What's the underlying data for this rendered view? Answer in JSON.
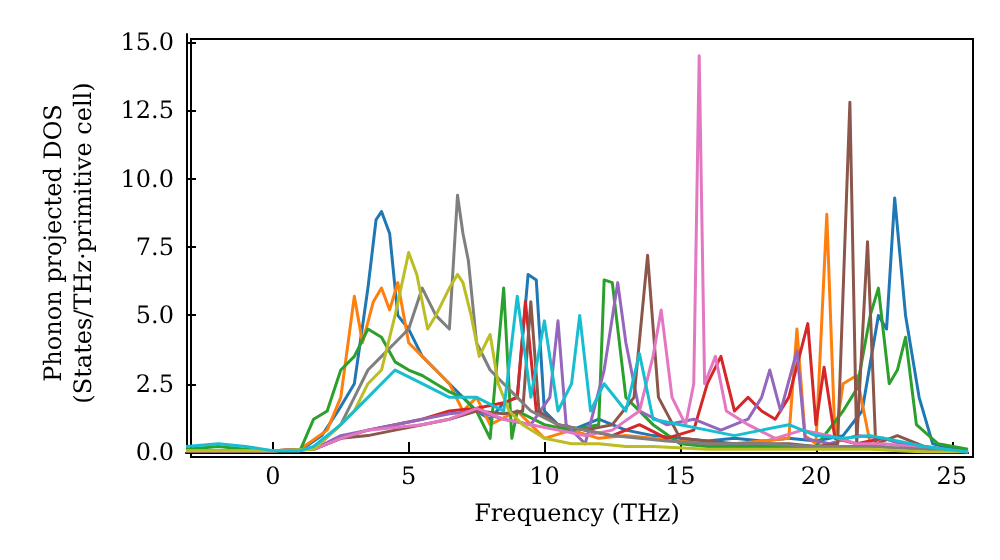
{
  "chart_data": {
    "type": "line",
    "xlabel": "Frequency (THz)",
    "ylabel": "Phonon projected DOS\n(States/THz·primitive cell)",
    "xlim": [
      -3.2,
      25.6
    ],
    "ylim": [
      0,
      15.3
    ],
    "xticks": [
      0,
      5,
      10,
      15,
      20,
      25
    ],
    "yticks": [
      {
        "value": 0,
        "label": "0.0"
      },
      2.5,
      {
        "value": 5,
        "label": "5.0"
      },
      7.5,
      {
        "value": 10,
        "label": "10.0"
      },
      12.5,
      {
        "value": 15,
        "label": "15.0"
      }
    ],
    "grid": false,
    "marker": "none",
    "line_style": "solid",
    "series": [
      {
        "color": "#1f77b4",
        "x": [
          0,
          1,
          1.8,
          2.4,
          3,
          3.5,
          3.8,
          4,
          4.3,
          4.6,
          5,
          5.5,
          6,
          6.5,
          7,
          7.5,
          8,
          8.5,
          9,
          9.4,
          9.7,
          10,
          10.5,
          11,
          12,
          13,
          14,
          15,
          16,
          17,
          18,
          19,
          20,
          21,
          21.7,
          22.3,
          22.6,
          22.9,
          23.3,
          23.8,
          24.3,
          25.6
        ],
        "values": [
          0.05,
          0.05,
          0.6,
          1.5,
          2.5,
          6,
          8.5,
          8.8,
          8,
          5,
          4.5,
          3.5,
          3,
          2.5,
          2,
          1.5,
          1.2,
          1.8,
          2,
          6.5,
          6.3,
          1.5,
          1,
          0.8,
          1.2,
          0.8,
          0.6,
          0.5,
          0.4,
          0.5,
          0.4,
          0.5,
          0.4,
          0.6,
          1.5,
          5,
          4.5,
          9.3,
          5,
          2,
          0.3,
          0
        ]
      },
      {
        "color": "#ff7f0e",
        "x": [
          0,
          1,
          2,
          2.5,
          3,
          3.3,
          3.7,
          4,
          4.3,
          4.6,
          5,
          5.5,
          6,
          6.5,
          7,
          7.5,
          8,
          9,
          10,
          11,
          12,
          13,
          14,
          15,
          16,
          17,
          18,
          19,
          19.3,
          19.6,
          20,
          20.4,
          20.7,
          21,
          21.5,
          22,
          23
        ],
        "values": [
          0.05,
          0.1,
          0.8,
          2,
          5.7,
          4,
          5.5,
          6,
          5.2,
          6.2,
          4,
          3.5,
          3,
          2.5,
          1.5,
          2,
          1,
          1.5,
          0.5,
          0.8,
          0.5,
          0.6,
          0.5,
          0.4,
          0.3,
          0.3,
          0.4,
          0.5,
          4.5,
          0.6,
          0.3,
          8.7,
          0.5,
          2.5,
          2.8,
          0.3,
          0.1
        ]
      },
      {
        "color": "#2ca02c",
        "x": [
          -3.2,
          -2,
          -1,
          0,
          1,
          1.5,
          2,
          2.5,
          3,
          3.5,
          4,
          4.5,
          5,
          5.5,
          6,
          6.5,
          7,
          7.5,
          8,
          8.5,
          8.8,
          9,
          10,
          11,
          12,
          12.2,
          12.5,
          13,
          14,
          15,
          16,
          17,
          18,
          19,
          20,
          21,
          21.5,
          22,
          22.3,
          22.7,
          23,
          23.3,
          23.7,
          24.5,
          25.6
        ],
        "values": [
          0.1,
          0.2,
          0.1,
          0.05,
          0.05,
          1.2,
          1.5,
          3,
          3.5,
          4.5,
          4.2,
          3.3,
          3,
          2.8,
          2.5,
          2.2,
          2,
          1.5,
          0.5,
          6,
          0.5,
          1.5,
          1,
          0.8,
          1,
          6.3,
          6.2,
          2,
          1,
          0.3,
          0.2,
          0.2,
          0.2,
          0.2,
          0.2,
          1.5,
          2.3,
          5,
          6,
          2.5,
          3,
          4.2,
          1,
          0.3,
          0.1
        ]
      },
      {
        "color": "#d62728",
        "x": [
          -3.2,
          0,
          1.5,
          2.5,
          3.5,
          4.5,
          5.5,
          6.5,
          7.5,
          8.5,
          9,
          9.3,
          9.7,
          10.5,
          11.5,
          12.5,
          13.5,
          14.5,
          15.5,
          16,
          16.5,
          17,
          17.5,
          18,
          18.5,
          19,
          19.7,
          20,
          20.3,
          20.7,
          21.5,
          22.5,
          23.5,
          25.6
        ],
        "values": [
          0.05,
          0.05,
          0.1,
          0.5,
          0.8,
          1,
          1.2,
          1.5,
          1.6,
          1.8,
          2,
          5.5,
          1.5,
          1,
          0.8,
          0.6,
          1,
          0.5,
          0.8,
          2.5,
          3.5,
          1.5,
          2,
          1.5,
          1.2,
          2,
          4.7,
          1,
          3.1,
          0.5,
          0.3,
          0.5,
          0.2,
          0
        ]
      },
      {
        "color": "#9467bd",
        "x": [
          -3.2,
          0,
          1.5,
          2.5,
          3.5,
          4.5,
          5.5,
          6.5,
          7.5,
          8.5,
          9.5,
          10.2,
          10.5,
          10.8,
          11.5,
          12.2,
          12.7,
          13,
          13.5,
          14.5,
          15.5,
          16.5,
          17.5,
          18,
          18.3,
          18.7,
          19.3,
          19.6,
          20.5,
          21.5,
          22.5,
          23.5,
          25.6
        ],
        "values": [
          0.05,
          0.05,
          0.1,
          0.6,
          0.8,
          1,
          1.2,
          1.4,
          1.5,
          1.2,
          1,
          2,
          4.8,
          1,
          0.3,
          3,
          6.2,
          4,
          1.5,
          1,
          1.2,
          0.8,
          1.2,
          2,
          3,
          1.5,
          3.7,
          0.5,
          0.3,
          0.6,
          0.5,
          0.2,
          0
        ]
      },
      {
        "color": "#8c564b",
        "x": [
          -3.2,
          0,
          1.5,
          2.5,
          3.5,
          4.5,
          5.5,
          6.5,
          7.5,
          8.5,
          9.2,
          9.5,
          9.8,
          10.5,
          11.5,
          12.5,
          13.3,
          13.8,
          14.2,
          15,
          16,
          17,
          18,
          19,
          20,
          20.8,
          21.25,
          21.5,
          21.9,
          22.2,
          23,
          24,
          25.6
        ],
        "values": [
          0.05,
          0.05,
          0.1,
          0.5,
          0.6,
          0.8,
          1,
          1.2,
          1.5,
          1.4,
          1.5,
          5.5,
          1.5,
          1,
          0.8,
          1,
          2,
          7.2,
          2,
          0.5,
          0.4,
          0.3,
          0.3,
          0.3,
          0.2,
          0.3,
          12.8,
          0.3,
          7.7,
          0.3,
          0.6,
          0.2,
          0
        ]
      },
      {
        "color": "#e377c2",
        "x": [
          -3.2,
          0,
          1.5,
          2.5,
          3.5,
          4.5,
          5.5,
          6.5,
          7.5,
          8.5,
          9.5,
          10.5,
          11.5,
          12.5,
          13.5,
          14,
          14.3,
          14.7,
          15.2,
          15.5,
          15.7,
          15.9,
          16.3,
          16.7,
          17.5,
          18.5,
          19.5,
          20.5,
          21.5,
          22.5,
          23.5,
          25.6
        ],
        "values": [
          0.05,
          0.05,
          0.1,
          0.5,
          0.8,
          0.9,
          1,
          1.2,
          1.6,
          1.2,
          1,
          0.8,
          0.6,
          0.8,
          1.5,
          3.5,
          5.2,
          2,
          1,
          2.5,
          14.5,
          2.5,
          3.5,
          1.5,
          1,
          0.5,
          0.8,
          0.6,
          0.3,
          0.3,
          0.2,
          0
        ]
      },
      {
        "color": "#7f7f7f",
        "x": [
          -3.2,
          0,
          1.5,
          2.5,
          3,
          3.5,
          4,
          4.5,
          5,
          5.5,
          6,
          6.5,
          6.8,
          7,
          7.2,
          7.5,
          8,
          8.5,
          9,
          9.5,
          10.5,
          11.5,
          12.5,
          13.5,
          14.5,
          16,
          18,
          20,
          22,
          24,
          25.6
        ],
        "values": [
          0.05,
          0.05,
          0.1,
          1,
          2,
          3,
          3.5,
          4,
          4.5,
          6,
          5,
          4.5,
          9.4,
          8,
          7,
          4,
          3,
          2.5,
          2,
          1.5,
          1,
          0.8,
          0.6,
          0.5,
          0.4,
          0.3,
          0.3,
          0.2,
          0.2,
          0.1,
          0
        ]
      },
      {
        "color": "#bcbd22",
        "x": [
          -3.2,
          0,
          1.5,
          2.5,
          3,
          3.5,
          4,
          4.5,
          5,
          5.3,
          5.7,
          6,
          6.5,
          6.8,
          7,
          7.3,
          7.6,
          8,
          8.3,
          8.7,
          9.2,
          10,
          11,
          12,
          13,
          14,
          16,
          18,
          20,
          22,
          24,
          25.6
        ],
        "values": [
          0.05,
          0.05,
          0.1,
          1,
          1.5,
          2.5,
          3,
          5,
          7.3,
          6.5,
          4.5,
          5,
          6,
          6.5,
          6.2,
          5,
          3.5,
          4.3,
          2.5,
          1.5,
          1,
          0.5,
          0.3,
          0.3,
          0.2,
          0.2,
          0.1,
          0.1,
          0.1,
          0.1,
          0,
          0
        ]
      },
      {
        "color": "#17becf",
        "x": [
          -3.2,
          -2,
          -1,
          0,
          1,
          1.5,
          2.5,
          3.5,
          4.5,
          5.5,
          6.5,
          7.5,
          8.5,
          9,
          9.5,
          10,
          10.5,
          11,
          11.3,
          11.7,
          12.2,
          13,
          13.5,
          14,
          15,
          16,
          17,
          18,
          19,
          20,
          21,
          22,
          23,
          24,
          25.6
        ],
        "values": [
          0.2,
          0.3,
          0.2,
          0.05,
          0.05,
          0.2,
          1,
          2,
          3,
          2.5,
          2,
          2,
          1.5,
          5.7,
          2,
          4.8,
          1.5,
          2.5,
          5,
          1.5,
          2.5,
          1.5,
          3.6,
          1.2,
          1,
          0.8,
          0.6,
          0.8,
          1,
          0.6,
          0.5,
          0.6,
          0.4,
          0.2,
          0
        ]
      }
    ]
  }
}
